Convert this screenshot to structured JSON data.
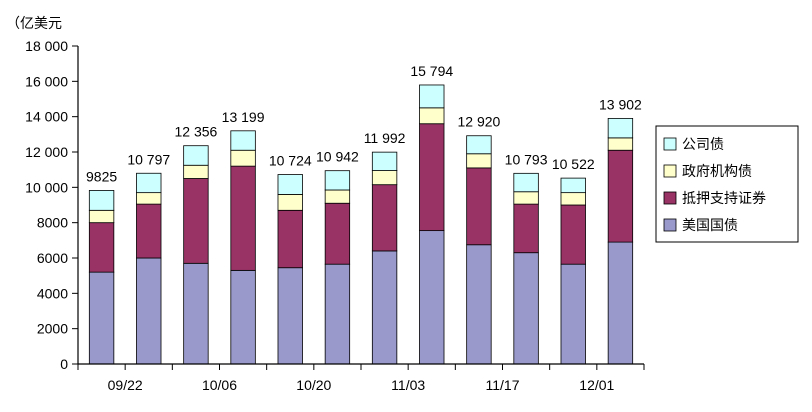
{
  "chart_data": {
    "type": "bar",
    "stacked": true,
    "unit_label": "（亿美元",
    "categories": [
      "09/22",
      "",
      "10/06",
      "",
      "10/20",
      "",
      "11/03",
      "",
      "11/17",
      "",
      "12/01",
      ""
    ],
    "x_tick_labels": [
      "09/22",
      "10/06",
      "10/20",
      "11/03",
      "11/17",
      "12/01"
    ],
    "ylim": [
      0,
      18000
    ],
    "y_ticks": [
      0,
      2000,
      4000,
      6000,
      8000,
      10000,
      12000,
      14000,
      16000,
      18000
    ],
    "y_tick_labels": [
      "0",
      "2000",
      "4000",
      "6000",
      "8000",
      "10 000",
      "12 000",
      "14 000",
      "16 000",
      "18 000"
    ],
    "totals": [
      9825,
      10797,
      12356,
      13199,
      10724,
      10942,
      11992,
      15794,
      12920,
      10793,
      10522,
      13902
    ],
    "total_labels": [
      "9825",
      "10 797",
      "12 356",
      "13 199",
      "10 724",
      "10 942",
      "11 992",
      "15 794",
      "12 920",
      "10 793",
      "10 522",
      "13 902"
    ],
    "series": [
      {
        "name": "美国国债",
        "color": "#9999cc",
        "values": [
          5200,
          6000,
          5700,
          5300,
          5450,
          5650,
          6400,
          7550,
          6750,
          6300,
          5650,
          6900
        ]
      },
      {
        "name": "抵押支持证券",
        "color": "#993366",
        "values": [
          2800,
          3050,
          4800,
          5900,
          3250,
          3450,
          3750,
          6050,
          4350,
          2750,
          3350,
          5200
        ]
      },
      {
        "name": "政府机构债",
        "color": "#ffffcc",
        "values": [
          700,
          650,
          750,
          900,
          900,
          750,
          800,
          900,
          800,
          700,
          700,
          700
        ]
      },
      {
        "name": "公司债",
        "color": "#ccffff",
        "values": [
          1125,
          1097,
          1106,
          1099,
          1124,
          1092,
          1042,
          1294,
          1020,
          1043,
          822,
          1102
        ]
      }
    ],
    "legend": {
      "placement": "right",
      "order": [
        "公司债",
        "政府机构债",
        "抵押支持证券",
        "美国国债"
      ]
    },
    "grid": false
  }
}
